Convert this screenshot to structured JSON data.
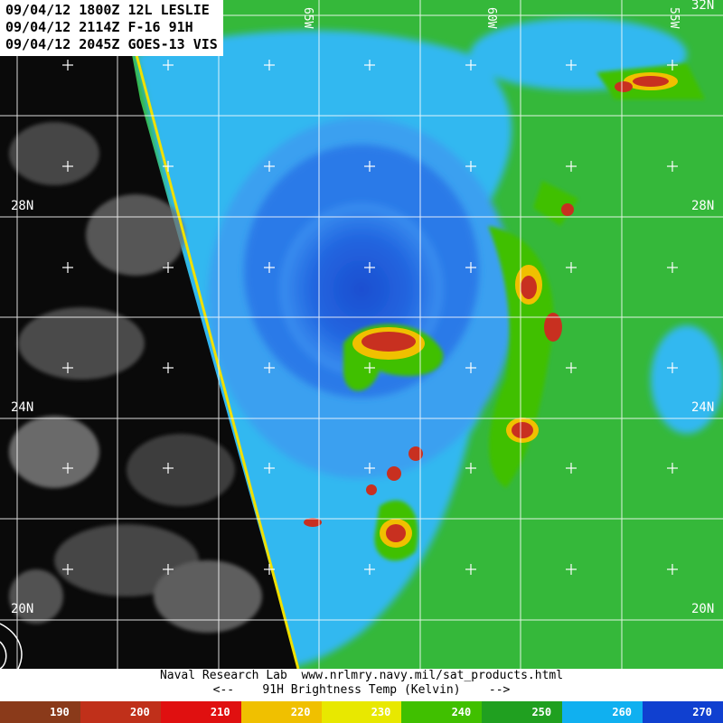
{
  "header": {
    "line1": "09/04/12 1800Z 12L LESLIE",
    "line2": "09/04/12 2114Z F-16 91H",
    "line3": "09/04/12 2045Z GOES-13 VIS"
  },
  "map": {
    "lat_labels": [
      "28N",
      "28N",
      "24N",
      "24N",
      "20N",
      "20N"
    ],
    "lon_labels": [
      "65W",
      "60W",
      "55W"
    ],
    "corner_label": "32N"
  },
  "credit": {
    "line1": "Naval Research Lab  www.nrlmry.navy.mil/sat_products.html",
    "line2": "<--    91H Brightness Temp (Kelvin)    -->"
  },
  "colorbar": {
    "ticks": [
      "190",
      "200",
      "210",
      "220",
      "230",
      "240",
      "250",
      "260",
      "270"
    ],
    "colors": [
      "#8a3a1a",
      "#c0301a",
      "#e01010",
      "#f0c000",
      "#e8e800",
      "#40c000",
      "#20a020",
      "#10b0f0",
      "#1040d0"
    ]
  }
}
